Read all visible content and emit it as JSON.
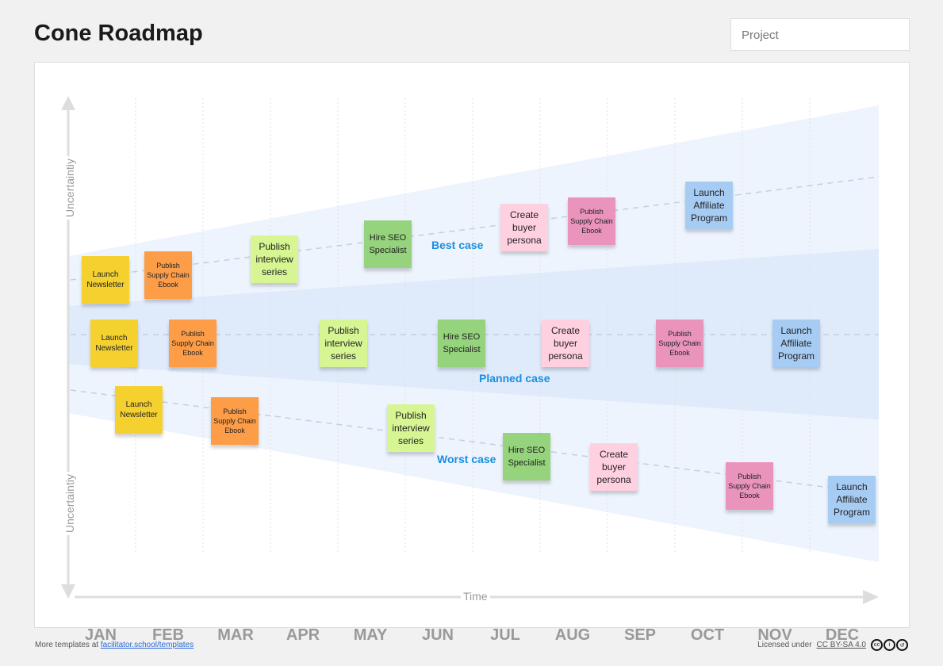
{
  "header": {
    "title": "Cone Roadmap",
    "project_placeholder": "Project"
  },
  "axes": {
    "y_label": "Uncertaintiy",
    "x_label": "Time",
    "months": [
      "JAN",
      "FEB",
      "MAR",
      "APR",
      "MAY",
      "JUN",
      "JUL",
      "AUG",
      "SEP",
      "OCT",
      "NOV",
      "DEC"
    ]
  },
  "cases": {
    "best": "Best case",
    "planned": "Planned case",
    "worst": "Worst case"
  },
  "notes": {
    "newsletter": "Launch Newsletter",
    "ebook": "Publish Supply Chain Ebook",
    "interview": "Publish interview series",
    "seo": "Hire SEO Specialist",
    "persona": "Create buyer persona",
    "affiliate": "Launch Affiliate Program"
  },
  "colors": {
    "yellow": "#f5d130",
    "orange": "#fd9d48",
    "light_green": "#d7f693",
    "green": "#95d47c",
    "pink": "#ffd0e0",
    "magenta": "#ea94bb",
    "blue": "#a7ccf4",
    "case_label": "#1a8ee0"
  },
  "footer": {
    "more_prefix": "More templates at",
    "more_link": "facilitator.school/templates",
    "license_prefix": "Licensed under",
    "license_link": "CC BY-SA 4.0"
  }
}
